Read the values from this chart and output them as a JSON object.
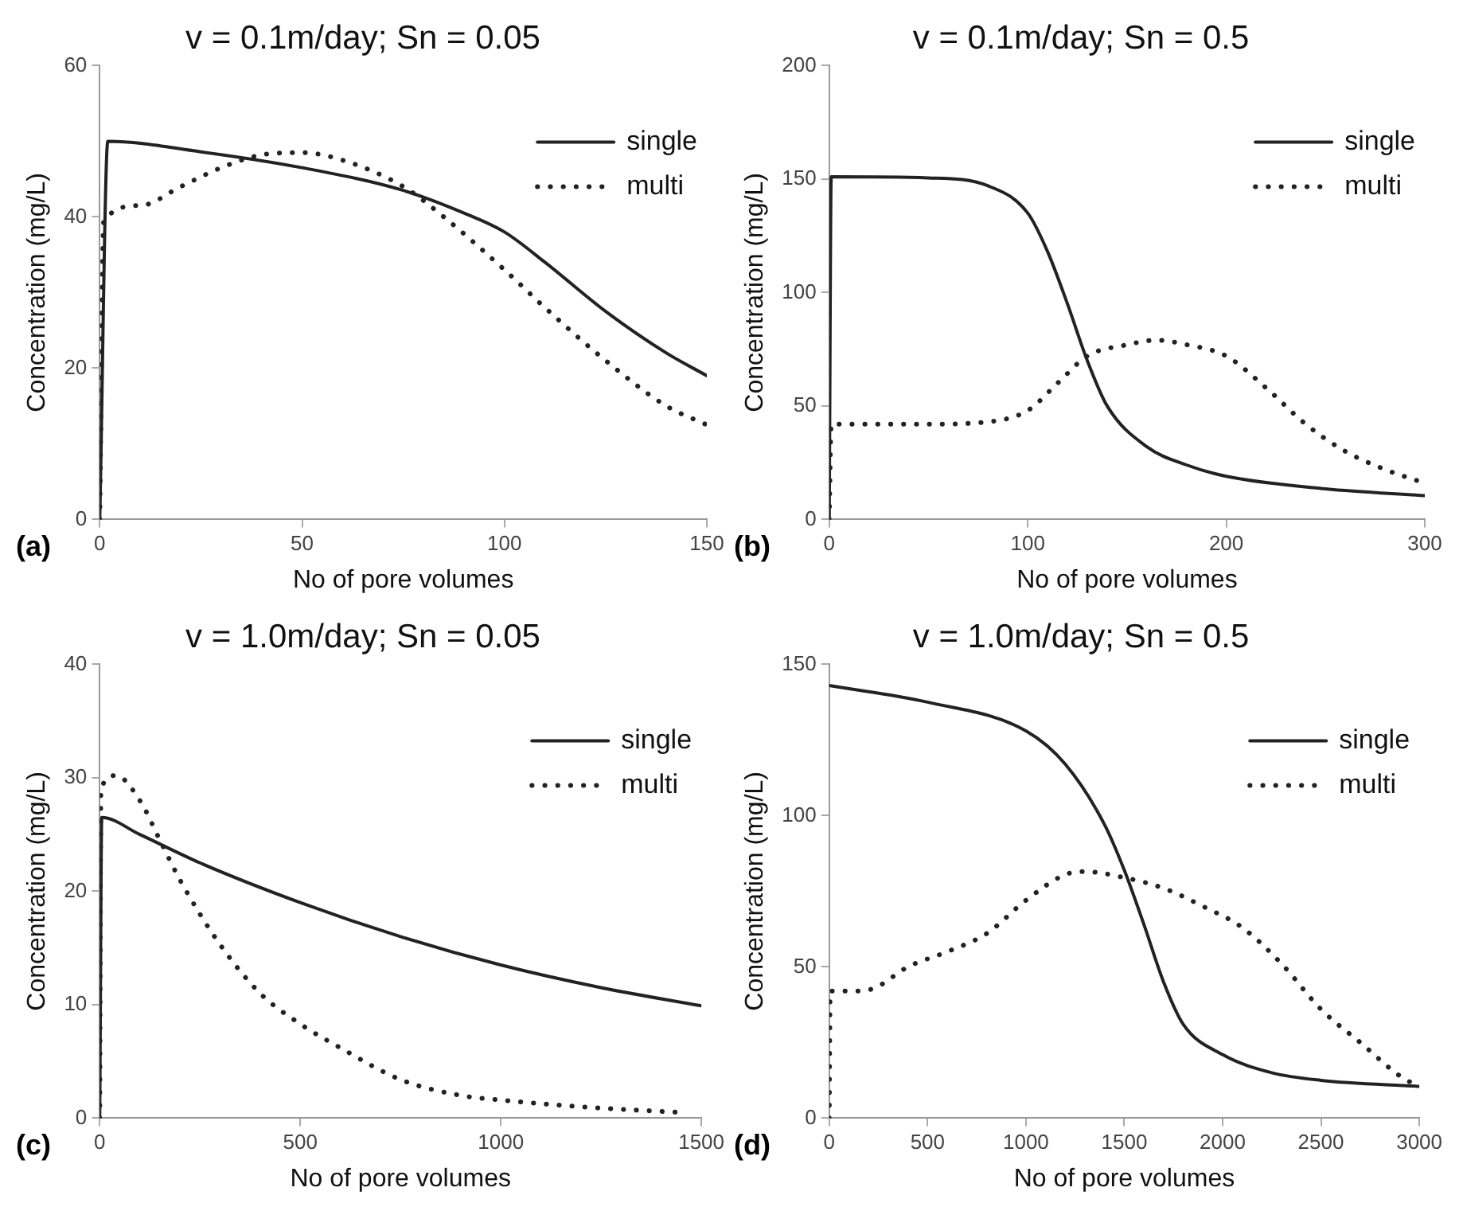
{
  "chart_data": [
    {
      "type": "line",
      "title": "v = 0.1m/day; Sn = 0.05",
      "xlabel": "No of pore volumes",
      "ylabel": "Concentration (mg/L)",
      "annotations": [
        "(a)"
      ],
      "xlim": [
        0,
        150
      ],
      "xticks": [
        0,
        50,
        100,
        150
      ],
      "ylim": [
        0,
        60
      ],
      "yticks": [
        0,
        20,
        40,
        60
      ],
      "grid": false,
      "legend": "top right",
      "marker": "none",
      "series": [
        {
          "name": "single",
          "color": "#222222",
          "line_style": "solid",
          "x": [
            0,
            2,
            25,
            50,
            75,
            90,
            100,
            110,
            125,
            140,
            150
          ],
          "values": [
            0,
            50,
            48.6,
            46.5,
            43.5,
            40.5,
            38,
            34,
            27.5,
            22,
            19
          ]
        },
        {
          "name": "multi",
          "color": "#222222",
          "line_style": "dotted",
          "x": [
            0,
            1,
            10,
            20,
            30,
            40,
            50,
            60,
            75,
            85,
            100,
            110,
            125,
            140,
            150
          ],
          "values": [
            0,
            39.5,
            41.5,
            44,
            46.5,
            48.2,
            48.5,
            47.5,
            44,
            40,
            33,
            28,
            21,
            15,
            12.5
          ]
        }
      ]
    },
    {
      "type": "line",
      "title": "v = 0.1m/day; Sn = 0.5",
      "xlabel": "No of pore volumes",
      "ylabel": "Concentration (mg/L)",
      "annotations": [
        "(b)"
      ],
      "xlim": [
        0,
        300
      ],
      "xticks": [
        0,
        100,
        200,
        300
      ],
      "ylim": [
        0,
        200
      ],
      "yticks": [
        0,
        50,
        100,
        150,
        200
      ],
      "grid": false,
      "legend": "top right",
      "marker": "none",
      "series": [
        {
          "name": "single",
          "color": "#222222",
          "line_style": "solid",
          "x": [
            0,
            1,
            50,
            80,
            100,
            110,
            120,
            130,
            140,
            160,
            180,
            200,
            250,
            300
          ],
          "values": [
            0,
            151,
            150.5,
            147,
            135,
            118,
            95,
            70,
            50,
            32,
            24,
            19,
            13.5,
            10.5
          ]
        },
        {
          "name": "multi",
          "color": "#222222",
          "line_style": "dotted",
          "x": [
            0,
            1,
            50,
            80,
            100,
            115,
            130,
            150,
            165,
            180,
            200,
            220,
            240,
            260,
            280,
            300
          ],
          "values": [
            0,
            42,
            42,
            43,
            48,
            60,
            72,
            77,
            79,
            77,
            72,
            58,
            42,
            30,
            22,
            16
          ]
        }
      ]
    },
    {
      "type": "line",
      "title": "v = 1.0m/day; Sn = 0.05",
      "xlabel": "No of pore volumes",
      "ylabel": "Concentration (mg/L)",
      "annotations": [
        "(c)"
      ],
      "xlim": [
        0,
        1500
      ],
      "xticks": [
        0,
        500,
        1000,
        1500
      ],
      "ylim": [
        0,
        40
      ],
      "yticks": [
        0,
        10,
        20,
        30,
        40
      ],
      "grid": false,
      "legend": "top right",
      "marker": "none",
      "series": [
        {
          "name": "single",
          "color": "#222222",
          "line_style": "solid",
          "x": [
            0,
            5,
            100,
            250,
            500,
            750,
            1000,
            1250,
            1500
          ],
          "values": [
            0,
            26.5,
            25,
            22.5,
            19,
            16,
            13.5,
            11.5,
            9.9
          ]
        },
        {
          "name": "multi",
          "color": "#222222",
          "line_style": "dotted",
          "x": [
            0,
            3,
            40,
            100,
            150,
            200,
            300,
            400,
            500,
            600,
            750,
            900,
            1000,
            1200,
            1450
          ],
          "values": [
            0,
            29,
            30.2,
            28,
            24.5,
            21,
            15.3,
            11,
            8.3,
            6.2,
            3.4,
            2,
            1.6,
            1,
            0.5
          ]
        }
      ]
    },
    {
      "type": "line",
      "title": "v = 1.0m/day; Sn = 0.5",
      "xlabel": "No of pore volumes",
      "ylabel": "Concentration (mg/L)",
      "annotations": [
        "(d)"
      ],
      "xlim": [
        0,
        3000
      ],
      "xticks": [
        0,
        500,
        1000,
        1500,
        2000,
        2500,
        3000
      ],
      "ylim": [
        0,
        150
      ],
      "yticks": [
        0,
        50,
        100,
        150
      ],
      "grid": false,
      "legend": "top right",
      "marker": "none",
      "series": [
        {
          "name": "single",
          "color": "#222222",
          "line_style": "solid",
          "x": [
            0,
            500,
            1000,
            1200,
            1400,
            1500,
            1600,
            1700,
            1800,
            2000,
            2250,
            2500,
            3000
          ],
          "values": [
            143,
            137.5,
            128,
            117,
            97,
            82,
            64,
            45,
            31,
            21,
            15,
            12.5,
            10.5
          ]
        },
        {
          "name": "multi",
          "color": "#222222",
          "line_style": "dotted",
          "x": [
            0,
            5,
            130,
            230,
            400,
            600,
            800,
            1000,
            1200,
            1300,
            1500,
            1700,
            1900,
            2100,
            2300,
            2500,
            2700,
            2900,
            2980
          ],
          "values": [
            0,
            42,
            42,
            43,
            50,
            55,
            61,
            72,
            80.5,
            81.5,
            79.5,
            76,
            70,
            63,
            51,
            36,
            25,
            14,
            11
          ]
        }
      ]
    }
  ]
}
